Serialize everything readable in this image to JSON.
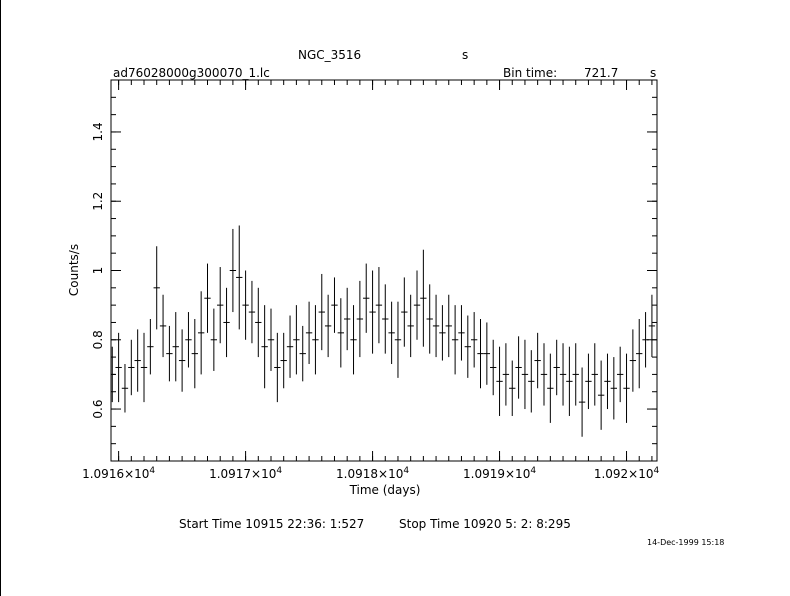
{
  "header": {
    "object_name": "NGC_3516",
    "object_suffix": "s",
    "file_name": "ad76028000g300070_1.lc",
    "bin_label": "Bin time:",
    "bin_value": "721.7",
    "bin_unit": "s"
  },
  "footer": {
    "start_time": "Start Time 10915 22:36: 1:527",
    "stop_time": "Stop Time 10920  5: 2: 8:295",
    "date_stamp": "14-Dec-1999 15:18"
  },
  "chart_data": {
    "type": "line",
    "title": "NGC_3516",
    "xlabel": "Time (days)",
    "ylabel": "Counts/s",
    "xlim": [
      10915.94,
      10920.24
    ],
    "ylim": [
      0.45,
      1.55
    ],
    "grid": false,
    "style": "histogram-step with vertical error bars",
    "line_color": "#000000",
    "x_ticks": [
      {
        "value": 10916,
        "mant": "1.0916",
        "exp": "4"
      },
      {
        "value": 10917,
        "mant": "1.0917",
        "exp": "4"
      },
      {
        "value": 10918,
        "mant": "1.0918",
        "exp": "4"
      },
      {
        "value": 10919,
        "mant": "1.0919",
        "exp": "4"
      },
      {
        "value": 10920,
        "mant": "1.092",
        "exp": "4"
      }
    ],
    "y_ticks": [
      {
        "value": 0.6,
        "label": "0.6"
      },
      {
        "value": 0.8,
        "label": "0.8"
      },
      {
        "value": 1.0,
        "label": "1"
      },
      {
        "value": 1.2,
        "label": "1.2"
      },
      {
        "value": 1.4,
        "label": "1.4"
      }
    ],
    "series": [
      {
        "x": [
          10915.95,
          10916.0,
          10916.05,
          10916.1,
          10916.15,
          10916.2,
          10916.25,
          10916.3,
          10916.35,
          10916.4,
          10916.45,
          10916.5,
          10916.55,
          10916.6,
          10916.65,
          10916.7,
          10916.75,
          10916.8,
          10916.85,
          10916.9,
          10916.95,
          10917.0,
          10917.05,
          10917.1,
          10917.15,
          10917.2,
          10917.25,
          10917.3,
          10917.35,
          10917.4,
          10917.45,
          10917.5,
          10917.55,
          10917.6,
          10917.65,
          10917.7,
          10917.75,
          10917.8,
          10917.85,
          10917.9,
          10917.95,
          10918.0,
          10918.05,
          10918.1,
          10918.15,
          10918.2,
          10918.25,
          10918.3,
          10918.35,
          10918.4,
          10918.45,
          10918.5,
          10918.55,
          10918.6,
          10918.65,
          10918.7,
          10918.75,
          10918.8,
          10918.85,
          10918.9,
          10918.95,
          10919.0,
          10919.05,
          10919.1,
          10919.15,
          10919.2,
          10919.25,
          10919.3,
          10919.35,
          10919.4,
          10919.45,
          10919.5,
          10919.55,
          10919.6,
          10919.65,
          10919.7,
          10919.75,
          10919.8,
          10919.85,
          10919.9,
          10919.95,
          10920.0,
          10920.05,
          10920.1,
          10920.15,
          10920.2
        ],
        "y": [
          0.7,
          0.72,
          0.66,
          0.72,
          0.74,
          0.72,
          0.78,
          0.95,
          0.84,
          0.76,
          0.78,
          0.74,
          0.8,
          0.76,
          0.82,
          0.92,
          0.8,
          0.9,
          0.85,
          1.0,
          0.98,
          0.9,
          0.88,
          0.85,
          0.78,
          0.8,
          0.72,
          0.74,
          0.78,
          0.8,
          0.76,
          0.82,
          0.8,
          0.88,
          0.84,
          0.9,
          0.82,
          0.86,
          0.8,
          0.86,
          0.92,
          0.88,
          0.9,
          0.86,
          0.82,
          0.8,
          0.88,
          0.84,
          0.9,
          0.92,
          0.86,
          0.84,
          0.82,
          0.84,
          0.8,
          0.82,
          0.78,
          0.8,
          0.76,
          0.76,
          0.72,
          0.68,
          0.7,
          0.66,
          0.72,
          0.7,
          0.68,
          0.74,
          0.7,
          0.66,
          0.72,
          0.7,
          0.68,
          0.7,
          0.62,
          0.68,
          0.7,
          0.64,
          0.68,
          0.66,
          0.7,
          0.66,
          0.74,
          0.76,
          0.8,
          0.84
        ],
        "err": [
          0.08,
          0.1,
          0.07,
          0.08,
          0.09,
          0.1,
          0.08,
          0.12,
          0.09,
          0.08,
          0.1,
          0.09,
          0.08,
          0.1,
          0.12,
          0.1,
          0.09,
          0.11,
          0.1,
          0.12,
          0.15,
          0.1,
          0.09,
          0.1,
          0.12,
          0.09,
          0.1,
          0.08,
          0.09,
          0.1,
          0.08,
          0.09,
          0.1,
          0.11,
          0.09,
          0.08,
          0.1,
          0.09,
          0.1,
          0.11,
          0.1,
          0.12,
          0.11,
          0.1,
          0.09,
          0.11,
          0.1,
          0.09,
          0.1,
          0.14,
          0.1,
          0.09,
          0.08,
          0.09,
          0.1,
          0.08,
          0.09,
          0.08,
          0.1,
          0.09,
          0.08,
          0.1,
          0.09,
          0.08,
          0.09,
          0.1,
          0.09,
          0.08,
          0.09,
          0.1,
          0.08,
          0.09,
          0.1,
          0.09,
          0.1,
          0.08,
          0.09,
          0.1,
          0.08,
          0.09,
          0.08,
          0.1,
          0.09,
          0.1,
          0.08,
          0.09
        ]
      }
    ]
  }
}
